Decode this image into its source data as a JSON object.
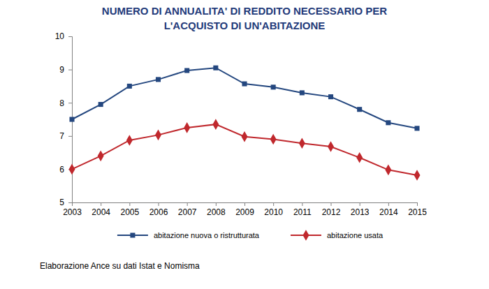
{
  "chart_data": {
    "type": "line",
    "title": [
      "NUMERO DI ANNUALITA' DI REDDITO NECESSARIO PER",
      "L'ACQUISTO DI UN'ABITAZIONE"
    ],
    "source": "Elaborazione Ance su dati Istat e Nomisma",
    "categories": [
      "2003",
      "2004",
      "2005",
      "2006",
      "2007",
      "2008",
      "2009",
      "2010",
      "2011",
      "2012",
      "2013",
      "2014",
      "2015"
    ],
    "series": [
      {
        "name": "abitazione nuova o ristrutturata",
        "color": "#24477f",
        "marker": "square",
        "values": [
          7.5,
          7.95,
          8.5,
          8.7,
          8.97,
          9.05,
          8.57,
          8.47,
          8.3,
          8.18,
          7.8,
          7.4,
          7.23
        ]
      },
      {
        "name": "abitazione usata",
        "color": "#c0282d",
        "marker": "diamond",
        "values": [
          6.0,
          6.4,
          6.87,
          7.03,
          7.25,
          7.35,
          6.98,
          6.9,
          6.78,
          6.68,
          6.35,
          5.98,
          5.82
        ]
      }
    ],
    "ylim": [
      5,
      10
    ],
    "yticks": [
      5,
      6,
      7,
      8,
      9,
      10
    ],
    "grid": false,
    "legend": "bottom"
  }
}
